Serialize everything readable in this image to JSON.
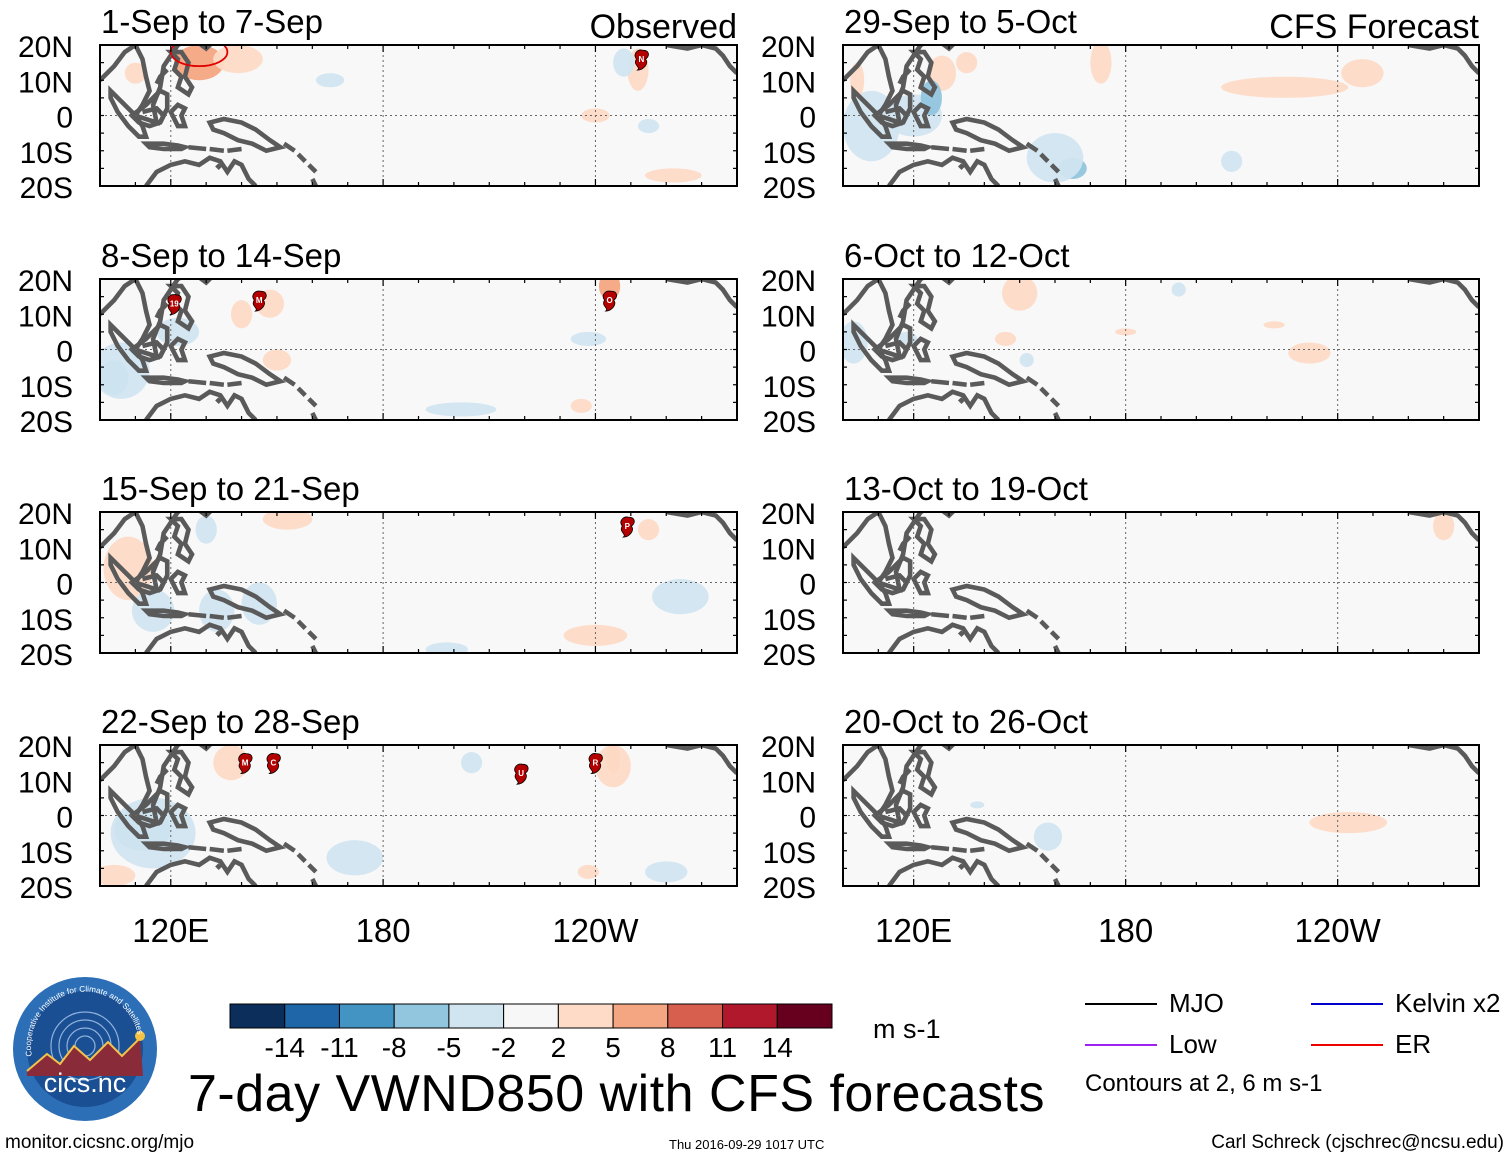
{
  "chart_data": {
    "type": "heatmap",
    "title": "7-day VWND850 with CFS forecasts",
    "units": "m s-1",
    "lon_range_deg_east": [
      100,
      280
    ],
    "lat_range": [
      -20,
      20
    ],
    "y_tick_labels": [
      "20N",
      "10N",
      "0",
      "10S",
      "20S"
    ],
    "x_tick_labels": [
      "120E",
      "180",
      "120W"
    ],
    "colorbar": {
      "levels": [
        -14,
        -11,
        -8,
        -5,
        -2,
        2,
        5,
        8,
        11,
        14
      ],
      "level_labels": [
        "-14",
        "-11",
        "-8",
        "-5",
        "-2",
        "2",
        "5",
        "8",
        "11",
        "14"
      ],
      "colors": [
        "#0b2f5a",
        "#1f66a8",
        "#4393c3",
        "#92c5de",
        "#d1e5f0",
        "#f7f7f7",
        "#fddbc7",
        "#f4a582",
        "#d6604d",
        "#b2182b",
        "#67001f"
      ]
    },
    "panel_groups": {
      "observed": "Observed",
      "forecast": "CFS Forecast"
    },
    "panels": [
      {
        "id": "obs1",
        "label": "1-Sep to 7-Sep",
        "group": "observed",
        "anomalies": [
          {
            "lon": 128,
            "lat": 15,
            "rx": 7,
            "ry": 5,
            "level": 5
          },
          {
            "lon": 139,
            "lat": 16,
            "rx": 7,
            "ry": 4,
            "level": 2
          },
          {
            "lon": 252,
            "lat": 13,
            "rx": 3,
            "ry": 6,
            "level": 2
          },
          {
            "lon": 248,
            "lat": 15,
            "rx": 3,
            "ry": 4,
            "level": -2
          },
          {
            "lon": 240,
            "lat": 0,
            "rx": 4,
            "ry": 2,
            "level": 2
          },
          {
            "lon": 255,
            "lat": -3,
            "rx": 3,
            "ry": 2,
            "level": -2
          },
          {
            "lon": 165,
            "lat": 10,
            "rx": 4,
            "ry": 2,
            "level": -2
          },
          {
            "lon": 110,
            "lat": 12,
            "rx": 3,
            "ry": 3,
            "level": 2
          },
          {
            "lon": 262,
            "lat": -17,
            "rx": 8,
            "ry": 2,
            "level": 2
          }
        ],
        "er_contour": {
          "lon": 128,
          "lat": 18,
          "rx": 8,
          "ry": 4
        },
        "storms": [
          {
            "label": "N",
            "lon": 253,
            "lat": 16
          }
        ]
      },
      {
        "id": "obs2",
        "label": "8-Sep to 14-Sep",
        "group": "observed",
        "anomalies": [
          {
            "lon": 104,
            "lat": -8,
            "rx": 4,
            "ry": 5,
            "level": -5
          },
          {
            "lon": 106,
            "lat": -6,
            "rx": 8,
            "ry": 8,
            "level": -2
          },
          {
            "lon": 140,
            "lat": 10,
            "rx": 3,
            "ry": 4,
            "level": 2
          },
          {
            "lon": 148,
            "lat": 13,
            "rx": 4,
            "ry": 4,
            "level": 2
          },
          {
            "lon": 122,
            "lat": 5,
            "rx": 6,
            "ry": 4,
            "level": -2
          },
          {
            "lon": 244,
            "lat": 18,
            "rx": 3,
            "ry": 4,
            "level": 5
          },
          {
            "lon": 238,
            "lat": 3,
            "rx": 5,
            "ry": 2,
            "level": -2
          },
          {
            "lon": 202,
            "lat": -17,
            "rx": 10,
            "ry": 2,
            "level": -2
          },
          {
            "lon": 236,
            "lat": -16,
            "rx": 3,
            "ry": 2,
            "level": 2
          },
          {
            "lon": 150,
            "lat": -3,
            "rx": 4,
            "ry": 3,
            "level": 2
          }
        ],
        "storms": [
          {
            "label": "19",
            "lon": 121,
            "lat": 13
          },
          {
            "label": "M",
            "lon": 145,
            "lat": 14
          },
          {
            "label": "O",
            "lon": 244,
            "lat": 14
          }
        ]
      },
      {
        "id": "obs3",
        "label": "15-Sep to 21-Sep",
        "group": "observed",
        "anomalies": [
          {
            "lon": 108,
            "lat": 4,
            "rx": 7,
            "ry": 9,
            "level": 2
          },
          {
            "lon": 115,
            "lat": -8,
            "rx": 6,
            "ry": 6,
            "level": -2
          },
          {
            "lon": 133,
            "lat": -8,
            "rx": 5,
            "ry": 6,
            "level": -2
          },
          {
            "lon": 145,
            "lat": -6,
            "rx": 5,
            "ry": 6,
            "level": -2
          },
          {
            "lon": 153,
            "lat": 18,
            "rx": 7,
            "ry": 3,
            "level": 2
          },
          {
            "lon": 130,
            "lat": 15,
            "rx": 3,
            "ry": 4,
            "level": -2
          },
          {
            "lon": 264,
            "lat": -4,
            "rx": 8,
            "ry": 5,
            "level": -2
          },
          {
            "lon": 255,
            "lat": 15,
            "rx": 3,
            "ry": 3,
            "level": 2
          },
          {
            "lon": 240,
            "lat": -15,
            "rx": 9,
            "ry": 3,
            "level": 2
          },
          {
            "lon": 198,
            "lat": -19,
            "rx": 6,
            "ry": 2,
            "level": -2
          }
        ],
        "storms": [
          {
            "label": "P",
            "lon": 249,
            "lat": 16
          }
        ]
      },
      {
        "id": "obs4",
        "label": "22-Sep to 28-Sep",
        "group": "observed",
        "anomalies": [
          {
            "lon": 110,
            "lat": -3,
            "rx": 4,
            "ry": 4,
            "level": -8
          },
          {
            "lon": 112,
            "lat": -4,
            "rx": 8,
            "ry": 6,
            "level": -5
          },
          {
            "lon": 115,
            "lat": -5,
            "rx": 12,
            "ry": 10,
            "level": -2
          },
          {
            "lon": 137,
            "lat": 15,
            "rx": 5,
            "ry": 5,
            "level": 2
          },
          {
            "lon": 104,
            "lat": -17,
            "rx": 6,
            "ry": 3,
            "level": 2
          },
          {
            "lon": 172,
            "lat": -12,
            "rx": 8,
            "ry": 5,
            "level": -2
          },
          {
            "lon": 205,
            "lat": 15,
            "rx": 3,
            "ry": 3,
            "level": -2
          },
          {
            "lon": 245,
            "lat": 16,
            "rx": 2,
            "ry": 4,
            "level": 5
          },
          {
            "lon": 245,
            "lat": 14,
            "rx": 5,
            "ry": 6,
            "level": 2
          },
          {
            "lon": 260,
            "lat": -16,
            "rx": 6,
            "ry": 3,
            "level": -2
          },
          {
            "lon": 238,
            "lat": -16,
            "rx": 3,
            "ry": 2,
            "level": 2
          }
        ],
        "storms": [
          {
            "label": "M",
            "lon": 141,
            "lat": 15
          },
          {
            "label": "C",
            "lon": 149,
            "lat": 15
          },
          {
            "label": "U",
            "lon": 219,
            "lat": 12
          },
          {
            "label": "R",
            "lon": 240,
            "lat": 15
          }
        ]
      },
      {
        "id": "fc1",
        "label": "29-Sep to 5-Oct",
        "group": "forecast",
        "anomalies": [
          {
            "lon": 108,
            "lat": -3,
            "rx": 8,
            "ry": 10,
            "level": -2
          },
          {
            "lon": 120,
            "lat": 0,
            "rx": 8,
            "ry": 6,
            "level": -2
          },
          {
            "lon": 128,
            "lat": 12,
            "rx": 4,
            "ry": 5,
            "level": 2
          },
          {
            "lon": 125,
            "lat": 5,
            "rx": 3,
            "ry": 5,
            "level": -5
          },
          {
            "lon": 165,
            "lat": -15,
            "rx": 4,
            "ry": 3,
            "level": -5
          },
          {
            "lon": 160,
            "lat": -12,
            "rx": 8,
            "ry": 7,
            "level": -2
          },
          {
            "lon": 225,
            "lat": 8,
            "rx": 18,
            "ry": 3,
            "level": 2
          },
          {
            "lon": 247,
            "lat": 12,
            "rx": 6,
            "ry": 4,
            "level": 2
          },
          {
            "lon": 173,
            "lat": 15,
            "rx": 3,
            "ry": 6,
            "level": 2
          },
          {
            "lon": 210,
            "lat": -13,
            "rx": 3,
            "ry": 3,
            "level": -2
          },
          {
            "lon": 135,
            "lat": 15,
            "rx": 3,
            "ry": 3,
            "level": 2
          },
          {
            "lon": 104,
            "lat": 10,
            "rx": 2,
            "ry": 5,
            "level": 2
          }
        ],
        "storms": []
      },
      {
        "id": "fc2",
        "label": "6-Oct to 12-Oct",
        "group": "forecast",
        "anomalies": [
          {
            "lon": 103,
            "lat": 2,
            "rx": 4,
            "ry": 6,
            "level": -2
          },
          {
            "lon": 118,
            "lat": 3,
            "rx": 3,
            "ry": 2,
            "level": -2
          },
          {
            "lon": 150,
            "lat": 16,
            "rx": 5,
            "ry": 5,
            "level": 2
          },
          {
            "lon": 232,
            "lat": -1,
            "rx": 6,
            "ry": 3,
            "level": 2
          },
          {
            "lon": 222,
            "lat": 7,
            "rx": 3,
            "ry": 1,
            "level": 2
          },
          {
            "lon": 146,
            "lat": 3,
            "rx": 3,
            "ry": 2,
            "level": 2
          },
          {
            "lon": 152,
            "lat": -3,
            "rx": 2,
            "ry": 2,
            "level": -2
          },
          {
            "lon": 180,
            "lat": 5,
            "rx": 3,
            "ry": 1,
            "level": 2
          },
          {
            "lon": 195,
            "lat": 17,
            "rx": 2,
            "ry": 2,
            "level": -2
          }
        ],
        "storms": []
      },
      {
        "id": "fc3",
        "label": "13-Oct to 19-Oct",
        "group": "forecast",
        "anomalies": [
          {
            "lon": 270,
            "lat": 16,
            "rx": 3,
            "ry": 4,
            "level": 2
          }
        ],
        "storms": []
      },
      {
        "id": "fc4",
        "label": "20-Oct to 26-Oct",
        "group": "forecast",
        "anomalies": [
          {
            "lon": 243,
            "lat": -2,
            "rx": 11,
            "ry": 3,
            "level": 2
          },
          {
            "lon": 158,
            "lat": -6,
            "rx": 4,
            "ry": 4,
            "level": -2
          },
          {
            "lon": 138,
            "lat": 3,
            "rx": 2,
            "ry": 1,
            "level": -2
          }
        ],
        "storms": []
      }
    ]
  },
  "legend": {
    "items": [
      {
        "label": "MJO",
        "color": "#000000"
      },
      {
        "label": "Kelvin x2",
        "color": "#0000cc"
      },
      {
        "label": "Low",
        "color": "#a020f0"
      },
      {
        "label": "ER",
        "color": "#ee0000"
      }
    ],
    "contour_note": "Contours at 2, 6 m s-1"
  },
  "logo": {
    "text": "cics.nc",
    "ring_text": "Cooperative Institute for Climate and Satellites"
  },
  "footer": {
    "left": "monitor.cicsnc.org/mjo",
    "center": "Thu 2016-09-29 1017 UTC",
    "right": "Carl Schreck (cjschrec@ncsu.edu)"
  }
}
